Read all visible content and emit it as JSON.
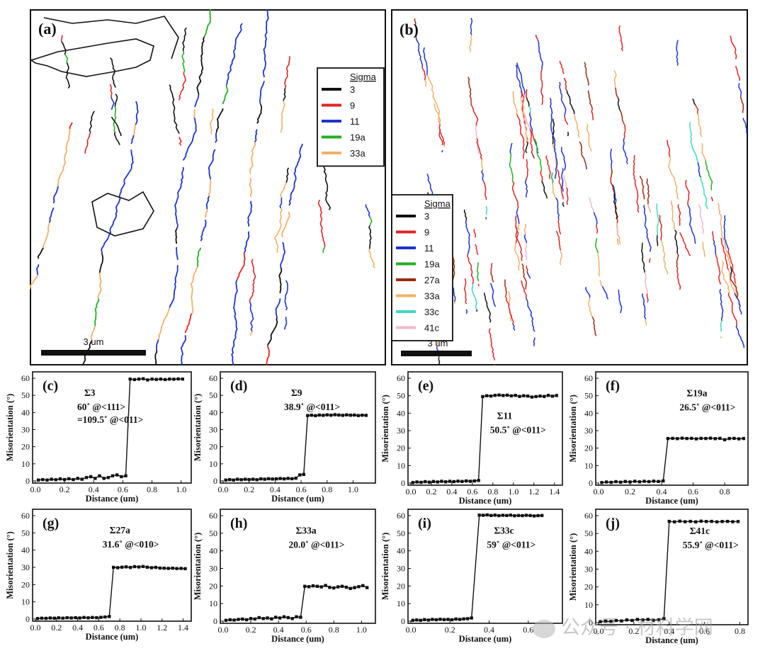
{
  "colors": {
    "s3": "#111111",
    "s9": "#e02424",
    "s11": "#1f33cc",
    "s19a": "#22b022",
    "s27a": "#9a2a12",
    "s33a": "#f2b06a",
    "s33c": "#40d8c2",
    "s41c": "#f2b8cc"
  },
  "map_a": {
    "label": "(a)",
    "legend_title": "Sigma",
    "legend": [
      {
        "name": "3",
        "color": "#111111"
      },
      {
        "name": "9",
        "color": "#e02424"
      },
      {
        "name": "11",
        "color": "#1f33cc"
      },
      {
        "name": "19a",
        "color": "#22b022"
      },
      {
        "name": "33a",
        "color": "#f2b06a"
      }
    ],
    "scale_label": "3 um"
  },
  "map_b": {
    "label": "(b)",
    "legend_title": "Sigma",
    "legend": [
      {
        "name": "3",
        "color": "#111111"
      },
      {
        "name": "9",
        "color": "#e02424"
      },
      {
        "name": "11",
        "color": "#1f33cc"
      },
      {
        "name": "19a",
        "color": "#22b022"
      },
      {
        "name": "27a",
        "color": "#9a2a12"
      },
      {
        "name": "33a",
        "color": "#f2b06a"
      },
      {
        "name": "33c",
        "color": "#40d8c2"
      },
      {
        "name": "41c",
        "color": "#f2b8cc"
      }
    ],
    "scale_label": "3 um"
  },
  "chart_data": [
    {
      "type": "line",
      "panel": "(c)",
      "sigma": "Σ3",
      "annotation": [
        "60˚ @<111>",
        "=109.5˚ @<011>"
      ],
      "xlabel": "Distance (um)",
      "ylabel": "Misorientation (°)",
      "xlim": [
        0,
        1.05
      ],
      "ylim": [
        0,
        60
      ],
      "xticks": [
        "0.0",
        "0.2",
        "0.4",
        "0.6",
        "0.8",
        "1.0"
      ],
      "xtick_values": [
        0,
        0.2,
        0.4,
        0.6,
        0.8,
        1.0
      ],
      "yticks": [
        0,
        10,
        20,
        30,
        40,
        50,
        60
      ],
      "x": [
        0.02,
        0.05,
        0.08,
        0.11,
        0.14,
        0.17,
        0.2,
        0.23,
        0.26,
        0.29,
        0.32,
        0.35,
        0.38,
        0.41,
        0.44,
        0.47,
        0.5,
        0.53,
        0.56,
        0.59,
        0.62,
        0.65,
        0.68,
        0.71,
        0.74,
        0.77,
        0.8,
        0.83,
        0.86,
        0.89,
        0.92,
        0.95,
        0.98,
        1.01
      ],
      "y": [
        0.5,
        0.8,
        0.5,
        1,
        0.7,
        1.2,
        0.8,
        1.3,
        0.8,
        1.5,
        1,
        2,
        2.5,
        1.5,
        3,
        1.5,
        2,
        3,
        3.5,
        2.5,
        3,
        59.5,
        59.2,
        59.5,
        59.7,
        59,
        59.5,
        59.3,
        59.5,
        59.2,
        59.5,
        59.4,
        59.6,
        59.5
      ]
    },
    {
      "type": "line",
      "panel": "(d)",
      "sigma": "Σ9",
      "annotation": [
        "38.9˚ @<011>"
      ],
      "xlabel": "Distance (um)",
      "ylabel": "Misorientation (°)",
      "xlim": [
        0,
        1.15
      ],
      "ylim": [
        0,
        60
      ],
      "xticks": [
        "0.0",
        "0.2",
        "0.4",
        "0.6",
        "0.8",
        "1.0"
      ],
      "xtick_values": [
        0,
        0.2,
        0.4,
        0.6,
        0.8,
        1.0
      ],
      "yticks": [
        0,
        10,
        20,
        30,
        40,
        50,
        60
      ],
      "x": [
        0.02,
        0.05,
        0.08,
        0.11,
        0.14,
        0.17,
        0.2,
        0.23,
        0.26,
        0.29,
        0.32,
        0.35,
        0.38,
        0.41,
        0.44,
        0.47,
        0.5,
        0.53,
        0.56,
        0.59,
        0.62,
        0.65,
        0.68,
        0.71,
        0.74,
        0.77,
        0.8,
        0.83,
        0.86,
        0.89,
        0.92,
        0.95,
        0.98,
        1.01,
        1.04,
        1.07,
        1.1
      ],
      "y": [
        0.5,
        0.8,
        0.5,
        1,
        0.7,
        1,
        0.8,
        1,
        0.7,
        1.2,
        1,
        1.3,
        1.1,
        1.2,
        1.4,
        1.2,
        1.5,
        1.3,
        1.6,
        3.5,
        3.8,
        38.2,
        38.4,
        38.1,
        38.5,
        38.3,
        38.6,
        38.4,
        38.7,
        38.5,
        38.3,
        38.6,
        38.4,
        38.5,
        38.2,
        38.4,
        38.3
      ]
    },
    {
      "type": "line",
      "panel": "(e)",
      "sigma": "Σ11",
      "annotation": [
        "50.5˚ @<011>"
      ],
      "xlabel": "Distance (um)",
      "ylabel": "Misorientation (°)",
      "xlim": [
        0,
        1.45
      ],
      "ylim": [
        0,
        60
      ],
      "xticks": [
        "0.0",
        "0.2",
        "0.4",
        "0.6",
        "0.8",
        "1.0",
        "1.2",
        "1.4"
      ],
      "xtick_values": [
        0,
        0.2,
        0.4,
        0.6,
        0.8,
        1.0,
        1.2,
        1.4
      ],
      "yticks": [
        0,
        10,
        20,
        30,
        40,
        50,
        60
      ],
      "x": [
        0.02,
        0.06,
        0.1,
        0.14,
        0.18,
        0.22,
        0.26,
        0.3,
        0.34,
        0.38,
        0.42,
        0.46,
        0.5,
        0.54,
        0.58,
        0.62,
        0.66,
        0.7,
        0.74,
        0.78,
        0.82,
        0.86,
        0.9,
        0.94,
        0.98,
        1.02,
        1.06,
        1.1,
        1.14,
        1.18,
        1.22,
        1.26,
        1.3,
        1.34,
        1.38,
        1.42
      ],
      "y": [
        0.3,
        0.6,
        0.4,
        0.8,
        0.5,
        0.9,
        0.6,
        1,
        0.7,
        1,
        0.8,
        1.1,
        0.9,
        1.2,
        1,
        1.2,
        1.5,
        49.5,
        50,
        49.8,
        50.2,
        50.4,
        50.1,
        50.3,
        49.9,
        50.2,
        49.6,
        50,
        49.8,
        49.2,
        49.5,
        49.8,
        49.6,
        50.2,
        49.7,
        50.1
      ]
    },
    {
      "type": "line",
      "panel": "(f)",
      "sigma": "Σ19a",
      "annotation": [
        "26.5˚ @<011>"
      ],
      "xlabel": "Distance (um)",
      "ylabel": "Misorientation (°)",
      "xlim": [
        0,
        0.93
      ],
      "ylim": [
        0,
        60
      ],
      "xticks": [
        "0.0",
        "0.2",
        "0.4",
        "0.6",
        "0.8"
      ],
      "xtick_values": [
        0,
        0.2,
        0.4,
        0.6,
        0.8
      ],
      "yticks": [
        0,
        10,
        20,
        30,
        40,
        50,
        60
      ],
      "x": [
        0.02,
        0.05,
        0.08,
        0.11,
        0.14,
        0.17,
        0.2,
        0.23,
        0.26,
        0.29,
        0.32,
        0.35,
        0.38,
        0.41,
        0.44,
        0.47,
        0.5,
        0.53,
        0.56,
        0.59,
        0.62,
        0.65,
        0.68,
        0.71,
        0.74,
        0.77,
        0.8,
        0.83,
        0.86,
        0.89,
        0.92
      ],
      "y": [
        0.3,
        0.6,
        0.4,
        0.8,
        0.5,
        0.9,
        0.6,
        1,
        0.7,
        1,
        0.8,
        1.1,
        0.9,
        1.2,
        25.5,
        25.6,
        25.4,
        25.7,
        25.5,
        25.6,
        25.3,
        25.6,
        25.5,
        25.7,
        25.4,
        25.6,
        24.8,
        25.5,
        25.6,
        25.3,
        25.5
      ]
    },
    {
      "type": "line",
      "panel": "(g)",
      "sigma": "Σ27a",
      "annotation": [
        "31.6˚ @<010>"
      ],
      "xlabel": "Distance (um)",
      "ylabel": "Misorientation (°)",
      "xlim": [
        0,
        1.45
      ],
      "ylim": [
        0,
        60
      ],
      "xticks": [
        "0.0",
        "0.2",
        "0.4",
        "0.6",
        "0.8",
        "1.0",
        "1.2",
        "1.4"
      ],
      "xtick_values": [
        0,
        0.2,
        0.4,
        0.6,
        0.8,
        1.0,
        1.2,
        1.4
      ],
      "yticks": [
        0,
        10,
        20,
        30,
        40,
        50,
        60
      ],
      "x": [
        0.02,
        0.06,
        0.1,
        0.14,
        0.18,
        0.22,
        0.26,
        0.3,
        0.34,
        0.38,
        0.42,
        0.46,
        0.5,
        0.54,
        0.58,
        0.62,
        0.66,
        0.7,
        0.74,
        0.78,
        0.82,
        0.86,
        0.9,
        0.94,
        0.98,
        1.02,
        1.06,
        1.1,
        1.14,
        1.18,
        1.22,
        1.26,
        1.3,
        1.34,
        1.38,
        1.42
      ],
      "y": [
        0.3,
        0.5,
        0.4,
        0.6,
        0.5,
        0.7,
        0.5,
        0.8,
        0.6,
        0.8,
        0.6,
        0.9,
        0.7,
        0.9,
        0.8,
        1,
        1.2,
        1.5,
        30,
        29.8,
        30.1,
        30.3,
        29.9,
        30.4,
        30.2,
        30.5,
        30.1,
        29.8,
        30,
        29.6,
        29.5,
        29.4,
        29.5,
        29.3,
        29.4,
        29.2
      ]
    },
    {
      "type": "line",
      "panel": "(h)",
      "sigma": "Σ33a",
      "annotation": [
        "20.0˚ @<011>"
      ],
      "xlabel": "Distance (um)",
      "ylabel": "Misorientation (°)",
      "xlim": [
        0,
        1.08
      ],
      "ylim": [
        0,
        60
      ],
      "xticks": [
        "0.0",
        "0.2",
        "0.4",
        "0.6",
        "0.8",
        "1.0"
      ],
      "xtick_values": [
        0,
        0.2,
        0.4,
        0.6,
        0.8,
        1.0
      ],
      "yticks": [
        0,
        10,
        20,
        30,
        40,
        50,
        60
      ],
      "x": [
        0.02,
        0.05,
        0.08,
        0.11,
        0.14,
        0.17,
        0.2,
        0.23,
        0.26,
        0.29,
        0.32,
        0.35,
        0.38,
        0.41,
        0.44,
        0.47,
        0.5,
        0.53,
        0.56,
        0.59,
        0.62,
        0.65,
        0.68,
        0.71,
        0.74,
        0.77,
        0.8,
        0.83,
        0.86,
        0.89,
        0.92,
        0.95,
        0.98,
        1.01,
        1.04
      ],
      "y": [
        0.5,
        0.8,
        0.6,
        1,
        1.2,
        0.8,
        1.5,
        1.2,
        2,
        1.5,
        1.8,
        1.3,
        2.2,
        1.8,
        2.5,
        2,
        1.5,
        2.5,
        2.2,
        19.8,
        19.6,
        20.1,
        19.8,
        19.5,
        20.3,
        19.2,
        18.9,
        19.5,
        19.8,
        19.3,
        18.6,
        19.1,
        19.6,
        20.2,
        19.1
      ]
    },
    {
      "type": "line",
      "panel": "(i)",
      "sigma": "Σ33c",
      "annotation": [
        "59˚ @<011>"
      ],
      "xlabel": "Distance (um)",
      "ylabel": "Misorientation (°)",
      "xlim": [
        0,
        0.76
      ],
      "ylim": [
        0,
        60
      ],
      "xticks": [
        "0.0",
        "0.2",
        "0.4",
        "0.6"
      ],
      "xtick_values": [
        0,
        0.2,
        0.4,
        0.6
      ],
      "yticks": [
        0,
        10,
        20,
        30,
        40,
        50,
        60
      ],
      "x": [
        0.01,
        0.03,
        0.05,
        0.07,
        0.09,
        0.11,
        0.13,
        0.15,
        0.17,
        0.19,
        0.21,
        0.23,
        0.25,
        0.27,
        0.29,
        0.31,
        0.35,
        0.37,
        0.39,
        0.41,
        0.43,
        0.45,
        0.47,
        0.49,
        0.51,
        0.53,
        0.55,
        0.57,
        0.59,
        0.61,
        0.63,
        0.65,
        0.67
      ],
      "y": [
        0.5,
        0.7,
        0.5,
        0.9,
        0.6,
        1,
        0.8,
        1.1,
        0.9,
        1,
        0.8,
        1.2,
        1,
        1.3,
        1.4,
        1.8,
        60.3,
        60.2,
        60.4,
        60.1,
        60.3,
        60,
        60.2,
        60.1,
        60.3,
        59.9,
        60.1,
        60,
        60.2,
        60.1,
        59.8,
        60,
        60.1
      ]
    },
    {
      "type": "line",
      "panel": "(j)",
      "sigma": "Σ41c",
      "annotation": [
        "55.9˚ @<011>"
      ],
      "xlabel": "Distance (um)",
      "ylabel": "Misorientation (°)",
      "xlim": [
        0,
        0.83
      ],
      "ylim": [
        0,
        60
      ],
      "xticks": [
        "0.0",
        "0.2",
        "0.4",
        "0.6",
        "0.8"
      ],
      "xtick_values": [
        0,
        0.2,
        0.4,
        0.6,
        0.8
      ],
      "yticks": [
        0,
        10,
        20,
        30,
        40,
        50,
        60
      ],
      "x": [
        0.01,
        0.04,
        0.07,
        0.1,
        0.13,
        0.16,
        0.19,
        0.22,
        0.25,
        0.28,
        0.31,
        0.34,
        0.37,
        0.4,
        0.43,
        0.46,
        0.49,
        0.52,
        0.55,
        0.58,
        0.61,
        0.64,
        0.67,
        0.7,
        0.73,
        0.76,
        0.79
      ],
      "y": [
        0.5,
        0.8,
        0.6,
        1.2,
        0.9,
        1.5,
        1.2,
        1.8,
        1.5,
        1.8,
        1.3,
        1.6,
        2.2,
        56.8,
        56.5,
        56.9,
        56.6,
        56.8,
        56.5,
        56.9,
        56.7,
        56.8,
        56.5,
        56.7,
        56.8,
        56.6,
        56.7
      ]
    }
  ],
  "watermark": "公众号 · 材料学网"
}
